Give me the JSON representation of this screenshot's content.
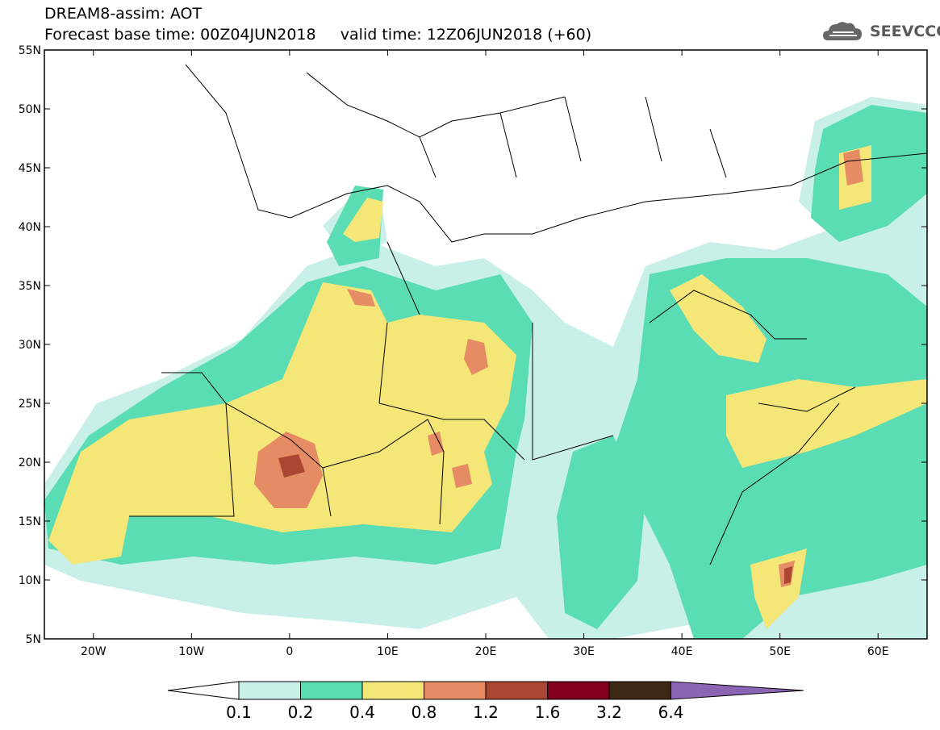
{
  "header": {
    "title": "DREAM8-assim: AOT",
    "base_time": "Forecast base time: 00Z04JUN2018",
    "valid_time": "valid time: 12Z06JUN2018 (+60)"
  },
  "logo": {
    "text": "SEEVCCC",
    "icon": "cloud-logo-icon"
  },
  "map": {
    "lat_ticks": [
      "55N",
      "50N",
      "45N",
      "40N",
      "35N",
      "30N",
      "25N",
      "20N",
      "15N",
      "10N",
      "5N"
    ],
    "lon_ticks": [
      "20W",
      "10W",
      "0",
      "10E",
      "20E",
      "30E",
      "40E",
      "50E",
      "60E"
    ],
    "lat_range": [
      5,
      55
    ],
    "lon_range": [
      -25,
      65
    ]
  },
  "colorbar": {
    "levels": [
      "0.1",
      "0.2",
      "0.4",
      "0.8",
      "1.2",
      "1.6",
      "3.2",
      "6.4"
    ],
    "colors": [
      "#c8f0e8",
      "#5adcb4",
      "#f5e678",
      "#e68c64",
      "#aa4632",
      "#82001e",
      "#3c2814",
      "#8c64b4"
    ]
  }
}
